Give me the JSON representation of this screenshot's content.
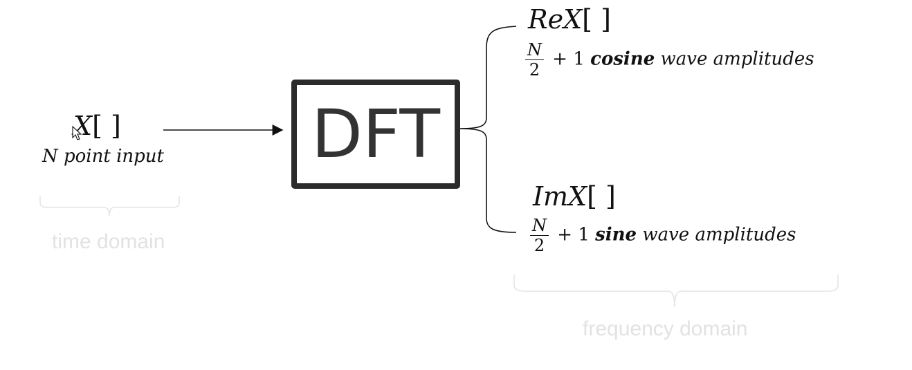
{
  "input": {
    "symbol": "X",
    "brackets": "[ ]",
    "caption": "N point input",
    "domain_label": "time domain"
  },
  "block": {
    "label": "DFT"
  },
  "output_real": {
    "symbol_prefix": "Re",
    "symbol": "X",
    "brackets": "[ ]",
    "fraction_numerator": "N",
    "fraction_denominator": "2",
    "plus_one": "+ 1",
    "wave_type": "cosine",
    "rest": "wave amplitudes"
  },
  "output_imag": {
    "symbol_prefix": "Im",
    "symbol": "X",
    "brackets": "[ ]",
    "fraction_numerator": "N",
    "fraction_denominator": "2",
    "plus_one": "+ 1",
    "wave_type": "sine",
    "rest": "wave amplitudes"
  },
  "output_domain_label": "frequency domain",
  "colors": {
    "line": "#111111",
    "box_border": "#2b2b2b",
    "muted_label": "#e2e2e2"
  }
}
